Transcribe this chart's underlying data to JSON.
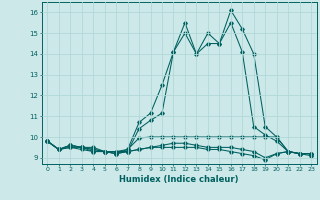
{
  "xlabel": "Humidex (Indice chaleur)",
  "ylabel": "",
  "xlim": [
    -0.5,
    23.5
  ],
  "ylim": [
    8.7,
    16.5
  ],
  "yticks": [
    9,
    10,
    11,
    12,
    13,
    14,
    15,
    16
  ],
  "xticks": [
    0,
    1,
    2,
    3,
    4,
    5,
    6,
    7,
    8,
    9,
    10,
    11,
    12,
    13,
    14,
    15,
    16,
    17,
    18,
    19,
    20,
    21,
    22,
    23
  ],
  "bg_color": "#cce8e8",
  "grid_color": "#aad4d4",
  "line_color": "#006060",
  "series": [
    [
      9.8,
      9.4,
      9.6,
      9.5,
      9.5,
      9.3,
      9.2,
      9.4,
      10.7,
      11.15,
      12.5,
      14.1,
      15.0,
      14.0,
      15.0,
      14.5,
      16.1,
      15.2,
      14.0,
      10.5,
      10.0,
      9.3,
      9.2,
      9.2
    ],
    [
      9.8,
      9.4,
      9.6,
      9.5,
      9.4,
      9.3,
      9.3,
      9.3,
      10.4,
      10.8,
      11.15,
      14.1,
      15.5,
      14.0,
      14.5,
      14.5,
      15.5,
      14.1,
      10.5,
      10.1,
      9.8,
      9.3,
      9.2,
      9.2
    ],
    [
      9.8,
      9.4,
      9.6,
      9.5,
      9.4,
      9.3,
      9.3,
      9.4,
      9.95,
      10.0,
      10.0,
      10.0,
      10.0,
      10.0,
      10.0,
      10.0,
      10.0,
      10.0,
      10.0,
      10.0,
      10.0,
      9.3,
      9.2,
      9.2
    ],
    [
      9.8,
      9.4,
      9.5,
      9.4,
      9.3,
      9.3,
      9.2,
      9.3,
      9.4,
      9.5,
      9.6,
      9.7,
      9.7,
      9.6,
      9.5,
      9.5,
      9.5,
      9.4,
      9.3,
      9.0,
      9.2,
      9.3,
      9.2,
      9.2
    ],
    [
      9.8,
      9.4,
      9.5,
      9.5,
      9.3,
      9.3,
      9.2,
      9.3,
      9.4,
      9.5,
      9.5,
      9.5,
      9.5,
      9.5,
      9.4,
      9.4,
      9.3,
      9.2,
      9.1,
      8.9,
      9.2,
      9.3,
      9.2,
      9.1
    ]
  ]
}
